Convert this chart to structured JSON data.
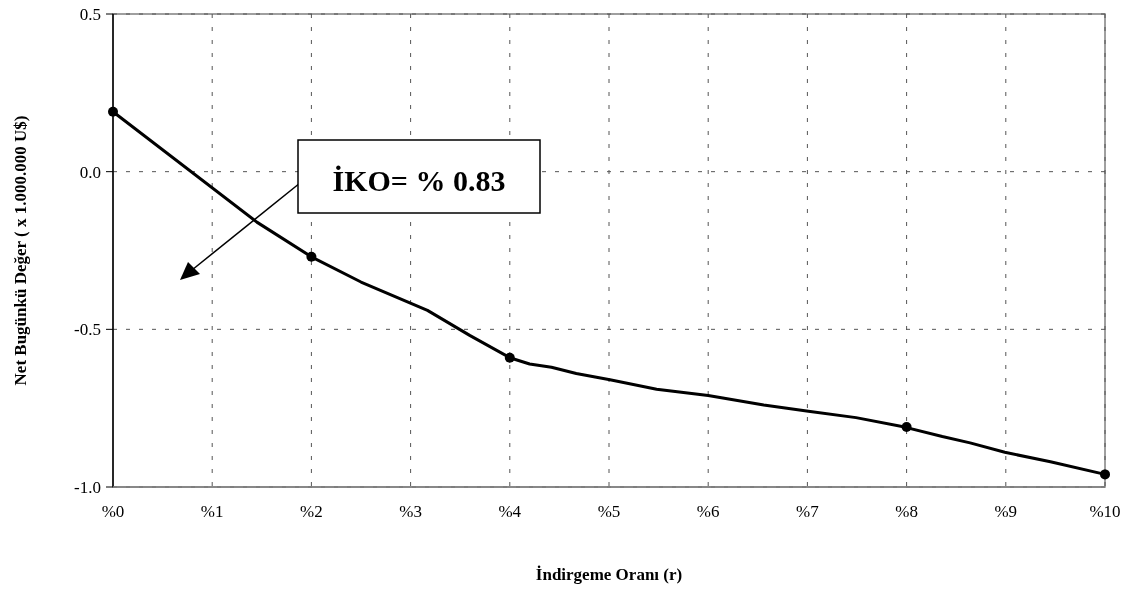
{
  "chart_data": {
    "type": "line",
    "xlabel": "İndirgeme Oranı (r)",
    "ylabel": "Net Bugünkü Değer ( x 1.000.000 U$)",
    "xlim": [
      0,
      10
    ],
    "xticks": [
      {
        "value": 0,
        "label": "%0"
      },
      {
        "value": 1,
        "label": "%1"
      },
      {
        "value": 2,
        "label": "%2"
      },
      {
        "value": 3,
        "label": "%3"
      },
      {
        "value": 4,
        "label": "%4"
      },
      {
        "value": 5,
        "label": "%5"
      },
      {
        "value": 6,
        "label": "%6"
      },
      {
        "value": 7,
        "label": "%7"
      },
      {
        "value": 8,
        "label": "%8"
      },
      {
        "value": 9,
        "label": "%9"
      },
      {
        "value": 10,
        "label": "%10"
      }
    ],
    "ylim": [
      -1,
      0.5
    ],
    "yticks": [
      {
        "value": -1,
        "label": "-1.0"
      },
      -0.5,
      {
        "value": 0,
        "label": "0.0"
      },
      0.5
    ],
    "grid": true,
    "series": [
      {
        "color": "#000000",
        "marker": "none",
        "line_style": "solid",
        "x": [
          0,
          1.45,
          2,
          2.5,
          3.17,
          3.6,
          4,
          4.2,
          4.42,
          4.67,
          5.01,
          5.48,
          6,
          6.56,
          7.01,
          7.49,
          7.98,
          8.36,
          8.64,
          8.99,
          9.45,
          10
        ],
        "values": [
          0.19,
          -0.16,
          -0.27,
          -0.35,
          -0.44,
          -0.52,
          -0.59,
          -0.61,
          -0.62,
          -0.64,
          -0.66,
          -0.69,
          -0.71,
          -0.74,
          -0.76,
          -0.78,
          -0.81,
          -0.84,
          -0.86,
          -0.89,
          -0.92,
          -0.96
        ]
      },
      {
        "type": "scatter",
        "color": "#000000",
        "marker": "circle",
        "x": [
          0,
          2,
          4,
          8,
          10
        ],
        "values": [
          0.19,
          -0.27,
          -0.59,
          -0.81,
          -0.96
        ]
      }
    ],
    "annotations": [
      "İKO= % 0.83"
    ]
  }
}
